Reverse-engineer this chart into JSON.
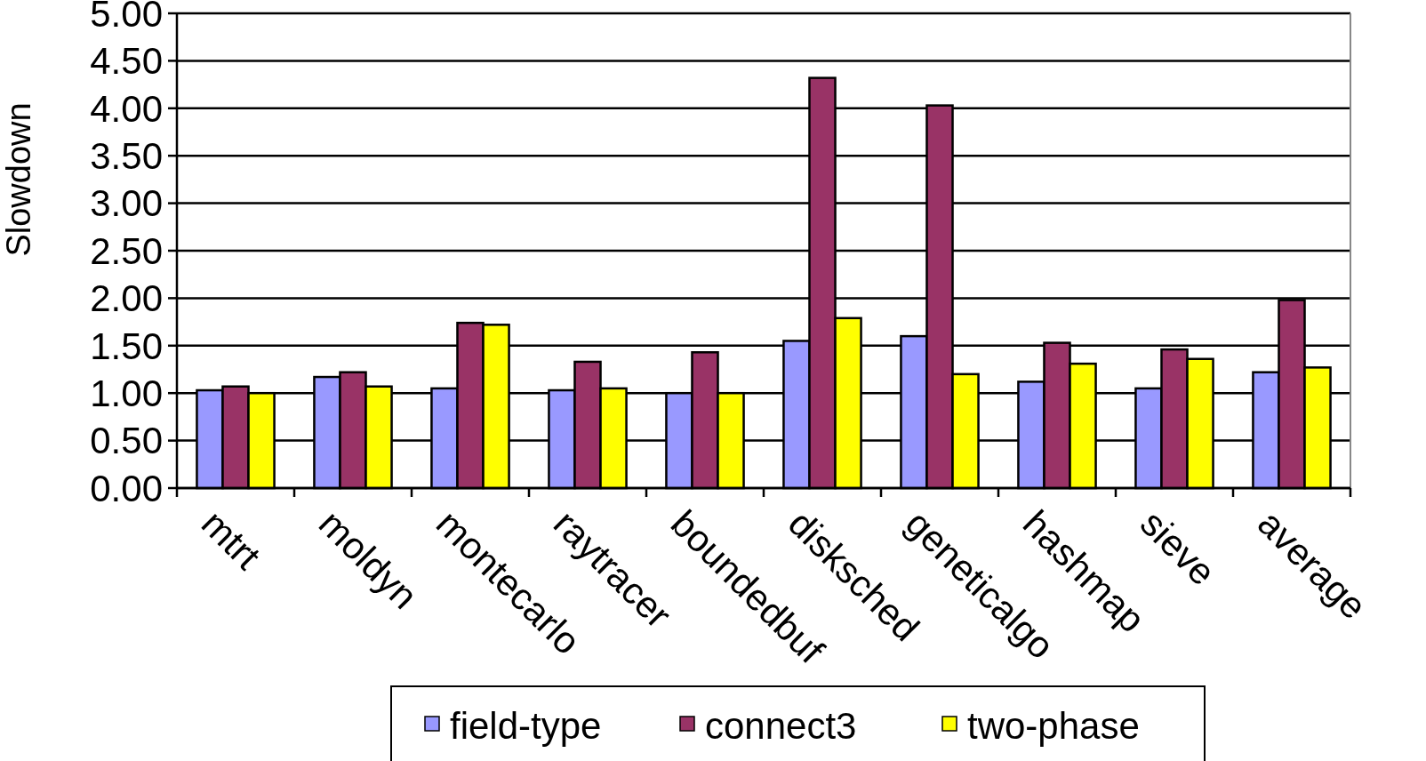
{
  "chart_data": {
    "type": "bar",
    "ylabel": "Slowdown",
    "categories": [
      "mtrt",
      "moldyn",
      "montecarlo",
      "raytracer",
      "boundedbuf",
      "disksched",
      "geneticalgo",
      "hashmap",
      "sieve",
      "average"
    ],
    "series": [
      {
        "name": "field-type",
        "color": "#9999ff",
        "values": [
          1.03,
          1.17,
          1.05,
          1.03,
          1.0,
          1.55,
          1.6,
          1.12,
          1.05,
          1.22
        ]
      },
      {
        "name": "connect3",
        "color": "#993366",
        "values": [
          1.07,
          1.22,
          1.74,
          1.33,
          1.43,
          4.32,
          4.03,
          1.53,
          1.46,
          1.98
        ]
      },
      {
        "name": "two-phase",
        "color": "#ffff00",
        "values": [
          1.0,
          1.07,
          1.72,
          1.05,
          1.0,
          1.79,
          1.2,
          1.31,
          1.36,
          1.27
        ]
      }
    ],
    "ylim": [
      0,
      5
    ],
    "yticks": [
      {
        "value": 0,
        "label": "0.00"
      },
      {
        "value": 0.5,
        "label": "0.50"
      },
      {
        "value": 1,
        "label": "1.00"
      },
      {
        "value": 1.5,
        "label": "1.50"
      },
      {
        "value": 2,
        "label": "2.00"
      },
      {
        "value": 2.5,
        "label": "2.50"
      },
      {
        "value": 3,
        "label": "3.00"
      },
      {
        "value": 3.5,
        "label": "3.50"
      },
      {
        "value": 4,
        "label": "4.00"
      },
      {
        "value": 4.5,
        "label": "4.50"
      },
      {
        "value": 5,
        "label": "5.00"
      }
    ],
    "grid": "y",
    "legend": "bottom"
  }
}
